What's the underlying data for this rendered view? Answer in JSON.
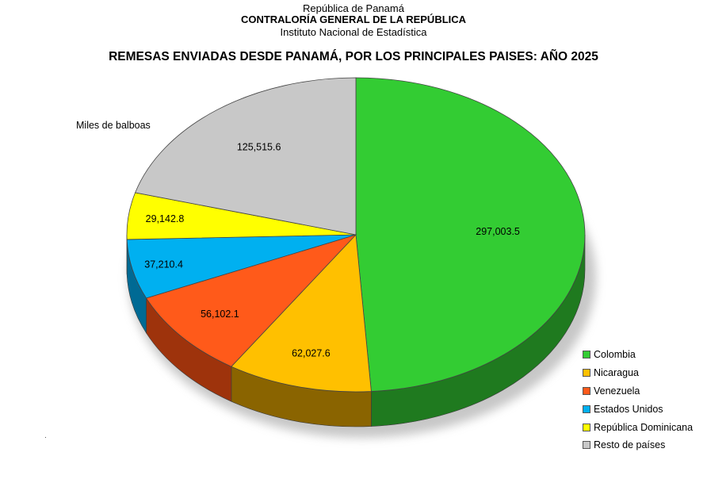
{
  "header": {
    "line1": "República de Panamá",
    "line2": "CONTRALORÍA GENERAL DE LA REPÚBLICA",
    "line3": "Instituto Nacional de Estadística"
  },
  "chart_data": {
    "type": "pie",
    "title": "REMESAS ENVIADAS DESDE PANAMÁ, POR LOS PRINCIPALES PAISES: AÑO 2025",
    "unit_label": "Miles de balboas",
    "legend_position": "bottom-right",
    "slices": [
      {
        "label": "Colombia",
        "value": 297003.5,
        "value_label": "297,003.5",
        "color": "#33cc33",
        "side": "#1f7a1f"
      },
      {
        "label": "Nicaragua",
        "value": 62027.6,
        "value_label": "62,027.6",
        "color": "#ffc000",
        "side": "#8a6400"
      },
      {
        "label": "Venezuela",
        "value": 56102.1,
        "value_label": "56,102.1",
        "color": "#ff5a1a",
        "side": "#9e330c"
      },
      {
        "label": "Estados Unidos",
        "value": 37210.4,
        "value_label": "37,210.4",
        "color": "#00b0f0",
        "side": "#006a94"
      },
      {
        "label": "República Dominicana",
        "value": 29142.8,
        "value_label": "29,142.8",
        "color": "#ffff00",
        "side": "#8f8f00"
      },
      {
        "label": "Resto de países",
        "value": 125515.6,
        "value_label": "125,515.6",
        "color": "#c8c8c8",
        "side": "#7a7a7a"
      }
    ]
  }
}
